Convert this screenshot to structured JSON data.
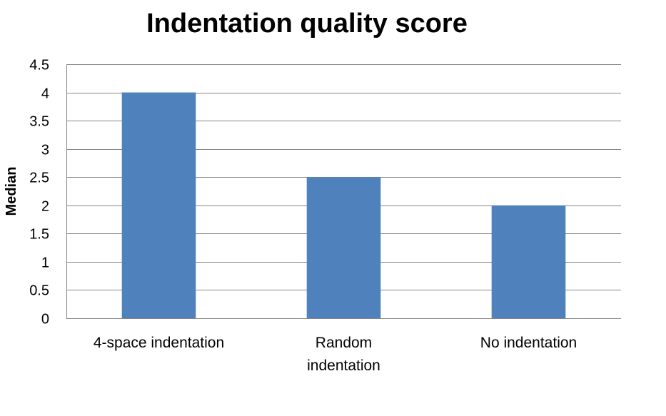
{
  "chart_data": {
    "type": "bar",
    "title": "Indentation quality score",
    "xlabel": "",
    "ylabel": "Median",
    "categories": [
      "4-space indentation",
      "Random indentation",
      "No indentation"
    ],
    "category_lines": [
      [
        "4-space indentation"
      ],
      [
        "Random",
        "indentation"
      ],
      [
        "No indentation"
      ]
    ],
    "values": [
      4,
      2.5,
      2
    ],
    "ylim": [
      0,
      4.5
    ],
    "yticks": [
      0,
      0.5,
      1,
      1.5,
      2,
      2.5,
      3,
      3.5,
      4,
      4.5
    ],
    "ytick_labels": [
      "0",
      "0.5",
      "1",
      "1.5",
      "2",
      "2.5",
      "3",
      "3.5",
      "4",
      "4.5"
    ],
    "grid": true,
    "legend": "none",
    "colors": {
      "bar": "#4f81bd",
      "grid": "#868686",
      "axis": "#868686"
    }
  }
}
